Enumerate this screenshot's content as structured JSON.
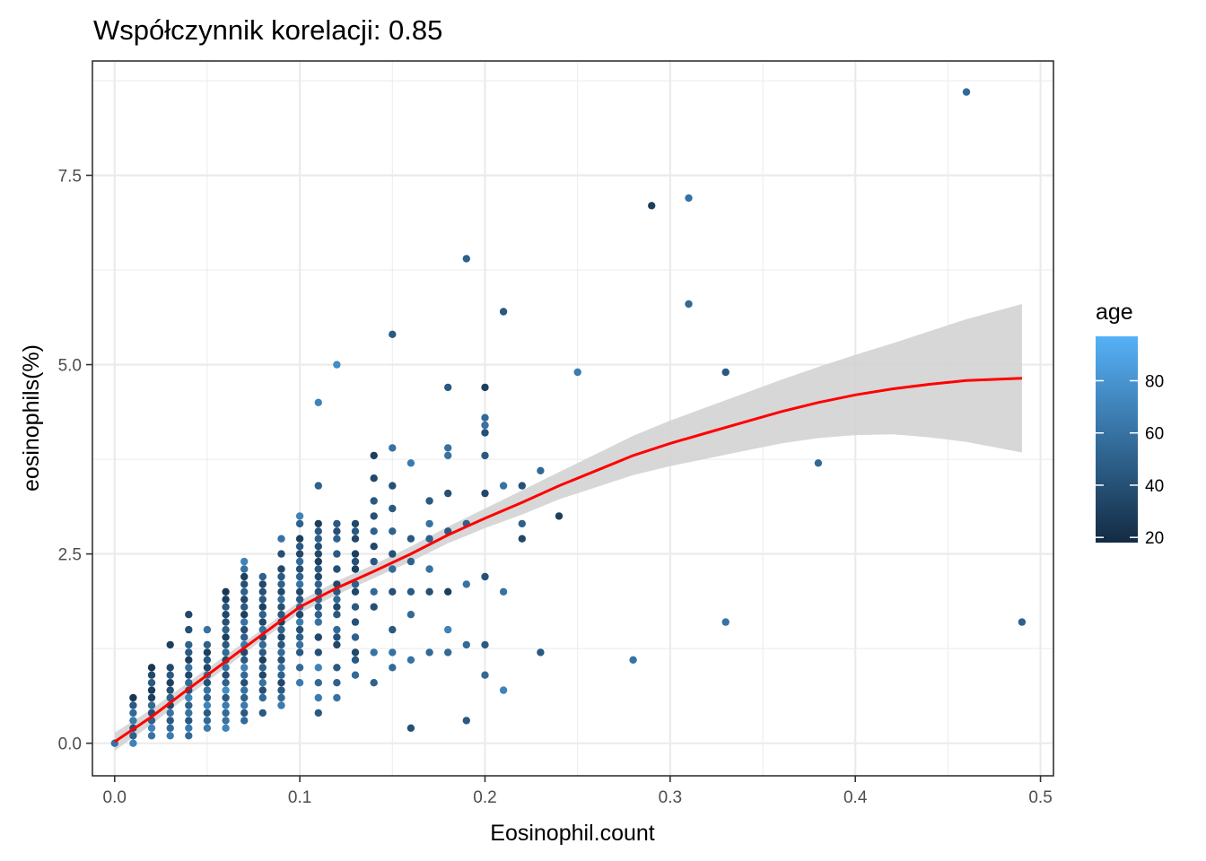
{
  "chart_data": {
    "type": "scatter",
    "title": "Współczynnik korelacji:  0.85",
    "xlabel": "Eosinophil.count",
    "ylabel": "eosinophils(%)",
    "xlim": [
      -0.012,
      0.507
    ],
    "ylim": [
      -0.43,
      9.01
    ],
    "x_ticks": [
      0.0,
      0.1,
      0.2,
      0.3,
      0.4,
      0.5
    ],
    "x_tick_labels": [
      "0.0",
      "0.1",
      "0.2",
      "0.3",
      "0.4",
      "0.5"
    ],
    "y_ticks": [
      0.0,
      2.5,
      5.0,
      7.5
    ],
    "y_tick_labels": [
      "0.0",
      "2.5",
      "5.0",
      "7.5"
    ],
    "grid": true,
    "legend": {
      "title": "age",
      "type": "colorbar",
      "position": "right",
      "range": [
        18,
        97
      ],
      "ticks": [
        20,
        40,
        60,
        80
      ],
      "tick_labels": [
        "20",
        "40",
        "60",
        "80"
      ],
      "low_color": "#132B43",
      "high_color": "#56B1F7"
    },
    "points": [
      [
        0.0,
        0.0,
        60
      ],
      [
        0.01,
        0.0,
        70
      ],
      [
        0.01,
        0.1,
        50
      ],
      [
        0.01,
        0.2,
        40
      ],
      [
        0.01,
        0.3,
        65
      ],
      [
        0.01,
        0.4,
        55
      ],
      [
        0.01,
        0.5,
        45
      ],
      [
        0.01,
        0.6,
        25
      ],
      [
        0.02,
        0.1,
        60
      ],
      [
        0.02,
        0.2,
        70
      ],
      [
        0.02,
        0.3,
        50
      ],
      [
        0.02,
        0.4,
        40
      ],
      [
        0.02,
        0.5,
        55
      ],
      [
        0.02,
        0.6,
        30
      ],
      [
        0.02,
        0.7,
        28
      ],
      [
        0.02,
        0.8,
        45
      ],
      [
        0.02,
        0.9,
        35
      ],
      [
        0.02,
        1.0,
        25
      ],
      [
        0.03,
        0.1,
        65
      ],
      [
        0.03,
        0.2,
        55
      ],
      [
        0.03,
        0.3,
        45
      ],
      [
        0.03,
        0.4,
        60
      ],
      [
        0.03,
        0.5,
        35
      ],
      [
        0.03,
        0.6,
        50
      ],
      [
        0.03,
        0.7,
        40
      ],
      [
        0.03,
        0.8,
        30
      ],
      [
        0.03,
        0.9,
        45
      ],
      [
        0.03,
        1.0,
        35
      ],
      [
        0.03,
        1.3,
        30
      ],
      [
        0.04,
        0.1,
        55
      ],
      [
        0.04,
        0.2,
        65
      ],
      [
        0.04,
        0.3,
        45
      ],
      [
        0.04,
        0.4,
        60
      ],
      [
        0.04,
        0.5,
        50
      ],
      [
        0.04,
        0.6,
        70
      ],
      [
        0.04,
        0.7,
        40
      ],
      [
        0.04,
        0.8,
        55
      ],
      [
        0.04,
        0.9,
        35
      ],
      [
        0.04,
        1.0,
        60
      ],
      [
        0.04,
        1.1,
        30
      ],
      [
        0.04,
        1.2,
        45
      ],
      [
        0.04,
        1.3,
        50
      ],
      [
        0.04,
        1.5,
        40
      ],
      [
        0.04,
        1.7,
        35
      ],
      [
        0.05,
        0.2,
        65
      ],
      [
        0.05,
        0.3,
        55
      ],
      [
        0.05,
        0.4,
        45
      ],
      [
        0.05,
        0.5,
        70
      ],
      [
        0.05,
        0.6,
        50
      ],
      [
        0.05,
        0.7,
        60
      ],
      [
        0.05,
        0.8,
        40
      ],
      [
        0.05,
        0.9,
        55
      ],
      [
        0.05,
        1.0,
        35
      ],
      [
        0.05,
        1.1,
        45
      ],
      [
        0.05,
        1.2,
        30
      ],
      [
        0.05,
        1.3,
        50
      ],
      [
        0.05,
        1.5,
        60
      ],
      [
        0.06,
        0.2,
        70
      ],
      [
        0.06,
        0.3,
        60
      ],
      [
        0.06,
        0.4,
        55
      ],
      [
        0.06,
        0.5,
        65
      ],
      [
        0.06,
        0.6,
        45
      ],
      [
        0.06,
        0.7,
        75
      ],
      [
        0.06,
        0.8,
        50
      ],
      [
        0.06,
        0.9,
        40
      ],
      [
        0.06,
        1.0,
        60
      ],
      [
        0.06,
        1.1,
        35
      ],
      [
        0.06,
        1.2,
        55
      ],
      [
        0.06,
        1.3,
        45
      ],
      [
        0.06,
        1.4,
        30
      ],
      [
        0.06,
        1.5,
        50
      ],
      [
        0.06,
        1.6,
        40
      ],
      [
        0.06,
        1.7,
        35
      ],
      [
        0.06,
        1.8,
        45
      ],
      [
        0.06,
        1.9,
        30
      ],
      [
        0.06,
        2.0,
        25
      ],
      [
        0.07,
        0.3,
        55
      ],
      [
        0.07,
        0.4,
        45
      ],
      [
        0.07,
        0.5,
        65
      ],
      [
        0.07,
        0.6,
        50
      ],
      [
        0.07,
        0.7,
        60
      ],
      [
        0.07,
        0.8,
        40
      ],
      [
        0.07,
        0.9,
        55
      ],
      [
        0.07,
        1.0,
        70
      ],
      [
        0.07,
        1.1,
        45
      ],
      [
        0.07,
        1.2,
        35
      ],
      [
        0.07,
        1.3,
        65
      ],
      [
        0.07,
        1.4,
        50
      ],
      [
        0.07,
        1.5,
        40
      ],
      [
        0.07,
        1.6,
        60
      ],
      [
        0.07,
        1.7,
        30
      ],
      [
        0.07,
        1.8,
        45
      ],
      [
        0.07,
        1.9,
        35
      ],
      [
        0.07,
        2.0,
        50
      ],
      [
        0.07,
        2.1,
        40
      ],
      [
        0.07,
        2.2,
        30
      ],
      [
        0.07,
        2.3,
        60
      ],
      [
        0.07,
        2.4,
        70
      ],
      [
        0.08,
        0.4,
        45
      ],
      [
        0.08,
        0.6,
        55
      ],
      [
        0.08,
        0.7,
        40
      ],
      [
        0.08,
        0.8,
        60
      ],
      [
        0.08,
        0.9,
        35
      ],
      [
        0.08,
        1.0,
        50
      ],
      [
        0.08,
        1.1,
        30
      ],
      [
        0.08,
        1.2,
        45
      ],
      [
        0.08,
        1.3,
        55
      ],
      [
        0.08,
        1.4,
        40
      ],
      [
        0.08,
        1.5,
        60
      ],
      [
        0.08,
        1.6,
        35
      ],
      [
        0.08,
        1.7,
        50
      ],
      [
        0.08,
        1.8,
        30
      ],
      [
        0.08,
        1.9,
        45
      ],
      [
        0.08,
        2.0,
        40
      ],
      [
        0.08,
        2.1,
        35
      ],
      [
        0.08,
        2.2,
        50
      ],
      [
        0.09,
        0.5,
        65
      ],
      [
        0.09,
        0.6,
        55
      ],
      [
        0.09,
        0.7,
        45
      ],
      [
        0.09,
        0.8,
        35
      ],
      [
        0.09,
        0.9,
        50
      ],
      [
        0.09,
        1.0,
        60
      ],
      [
        0.09,
        1.1,
        40
      ],
      [
        0.09,
        1.2,
        55
      ],
      [
        0.09,
        1.3,
        45
      ],
      [
        0.09,
        1.4,
        35
      ],
      [
        0.09,
        1.5,
        50
      ],
      [
        0.09,
        1.6,
        30
      ],
      [
        0.09,
        1.7,
        45
      ],
      [
        0.09,
        1.8,
        40
      ],
      [
        0.09,
        1.9,
        55
      ],
      [
        0.09,
        2.0,
        35
      ],
      [
        0.09,
        2.1,
        50
      ],
      [
        0.09,
        2.2,
        45
      ],
      [
        0.09,
        2.3,
        35
      ],
      [
        0.09,
        2.5,
        40
      ],
      [
        0.09,
        2.7,
        60
      ],
      [
        0.1,
        0.8,
        65
      ],
      [
        0.1,
        1.0,
        55
      ],
      [
        0.1,
        1.2,
        45
      ],
      [
        0.1,
        1.3,
        60
      ],
      [
        0.1,
        1.4,
        50
      ],
      [
        0.1,
        1.5,
        40
      ],
      [
        0.1,
        1.6,
        65
      ],
      [
        0.1,
        1.7,
        35
      ],
      [
        0.1,
        1.8,
        55
      ],
      [
        0.1,
        1.9,
        45
      ],
      [
        0.1,
        2.0,
        35
      ],
      [
        0.1,
        2.1,
        60
      ],
      [
        0.1,
        2.2,
        50
      ],
      [
        0.1,
        2.3,
        40
      ],
      [
        0.1,
        2.4,
        55
      ],
      [
        0.1,
        2.5,
        35
      ],
      [
        0.1,
        2.6,
        45
      ],
      [
        0.1,
        2.7,
        30
      ],
      [
        0.1,
        2.9,
        50
      ],
      [
        0.1,
        3.0,
        70
      ],
      [
        0.11,
        0.4,
        45
      ],
      [
        0.11,
        0.6,
        65
      ],
      [
        0.11,
        0.8,
        55
      ],
      [
        0.11,
        1.0,
        70
      ],
      [
        0.11,
        1.2,
        40
      ],
      [
        0.11,
        1.4,
        35
      ],
      [
        0.11,
        1.6,
        60
      ],
      [
        0.11,
        1.7,
        50
      ],
      [
        0.11,
        1.8,
        45
      ],
      [
        0.11,
        1.9,
        55
      ],
      [
        0.11,
        2.0,
        40
      ],
      [
        0.11,
        2.1,
        50
      ],
      [
        0.11,
        2.2,
        35
      ],
      [
        0.11,
        2.3,
        45
      ],
      [
        0.11,
        2.4,
        30
      ],
      [
        0.11,
        2.5,
        35
      ],
      [
        0.11,
        2.6,
        40
      ],
      [
        0.11,
        2.7,
        50
      ],
      [
        0.11,
        2.8,
        45
      ],
      [
        0.11,
        2.9,
        30
      ],
      [
        0.11,
        3.4,
        50
      ],
      [
        0.11,
        4.5,
        70
      ],
      [
        0.12,
        0.6,
        60
      ],
      [
        0.12,
        0.8,
        50
      ],
      [
        0.12,
        1.0,
        45
      ],
      [
        0.12,
        1.3,
        35
      ],
      [
        0.12,
        1.4,
        40
      ],
      [
        0.12,
        1.5,
        55
      ],
      [
        0.12,
        1.7,
        45
      ],
      [
        0.12,
        1.8,
        35
      ],
      [
        0.12,
        1.9,
        55
      ],
      [
        0.12,
        2.0,
        45
      ],
      [
        0.12,
        2.1,
        35
      ],
      [
        0.12,
        2.3,
        40
      ],
      [
        0.12,
        2.5,
        45
      ],
      [
        0.12,
        2.7,
        50
      ],
      [
        0.12,
        2.8,
        40
      ],
      [
        0.12,
        2.9,
        45
      ],
      [
        0.12,
        5.0,
        75
      ],
      [
        0.13,
        0.9,
        55
      ],
      [
        0.13,
        1.1,
        45
      ],
      [
        0.13,
        1.2,
        35
      ],
      [
        0.13,
        1.4,
        50
      ],
      [
        0.13,
        1.6,
        40
      ],
      [
        0.13,
        1.8,
        45
      ],
      [
        0.13,
        2.0,
        35
      ],
      [
        0.13,
        2.1,
        50
      ],
      [
        0.13,
        2.3,
        30
      ],
      [
        0.13,
        2.4,
        40
      ],
      [
        0.13,
        2.5,
        30
      ],
      [
        0.13,
        2.7,
        35
      ],
      [
        0.13,
        2.8,
        45
      ],
      [
        0.13,
        2.9,
        35
      ],
      [
        0.14,
        0.8,
        50
      ],
      [
        0.14,
        1.2,
        60
      ],
      [
        0.14,
        1.8,
        40
      ],
      [
        0.14,
        2.0,
        55
      ],
      [
        0.14,
        2.4,
        45
      ],
      [
        0.14,
        2.6,
        35
      ],
      [
        0.14,
        2.8,
        50
      ],
      [
        0.14,
        3.0,
        40
      ],
      [
        0.14,
        3.2,
        45
      ],
      [
        0.14,
        3.5,
        35
      ],
      [
        0.14,
        3.8,
        30
      ],
      [
        0.15,
        1.0,
        55
      ],
      [
        0.15,
        1.2,
        60
      ],
      [
        0.15,
        1.5,
        45
      ],
      [
        0.15,
        2.0,
        40
      ],
      [
        0.15,
        2.3,
        55
      ],
      [
        0.15,
        2.5,
        40
      ],
      [
        0.15,
        2.8,
        50
      ],
      [
        0.15,
        3.1,
        45
      ],
      [
        0.15,
        3.4,
        40
      ],
      [
        0.15,
        3.9,
        60
      ],
      [
        0.15,
        5.4,
        45
      ],
      [
        0.16,
        0.2,
        40
      ],
      [
        0.16,
        1.1,
        60
      ],
      [
        0.16,
        1.7,
        55
      ],
      [
        0.16,
        2.0,
        45
      ],
      [
        0.16,
        2.4,
        50
      ],
      [
        0.16,
        2.7,
        45
      ],
      [
        0.16,
        3.7,
        65
      ],
      [
        0.17,
        1.2,
        55
      ],
      [
        0.17,
        2.0,
        40
      ],
      [
        0.17,
        2.3,
        60
      ],
      [
        0.17,
        2.7,
        50
      ],
      [
        0.17,
        2.9,
        60
      ],
      [
        0.17,
        3.2,
        45
      ],
      [
        0.18,
        1.2,
        55
      ],
      [
        0.18,
        1.5,
        70
      ],
      [
        0.18,
        2.0,
        30
      ],
      [
        0.18,
        2.8,
        45
      ],
      [
        0.18,
        3.3,
        40
      ],
      [
        0.18,
        3.8,
        60
      ],
      [
        0.18,
        3.9,
        60
      ],
      [
        0.18,
        4.7,
        45
      ],
      [
        0.19,
        0.3,
        45
      ],
      [
        0.19,
        1.3,
        55
      ],
      [
        0.19,
        2.1,
        60
      ],
      [
        0.19,
        2.9,
        50
      ],
      [
        0.19,
        6.4,
        50
      ],
      [
        0.2,
        0.9,
        55
      ],
      [
        0.2,
        1.3,
        45
      ],
      [
        0.2,
        2.2,
        40
      ],
      [
        0.2,
        3.3,
        35
      ],
      [
        0.2,
        3.8,
        45
      ],
      [
        0.2,
        4.1,
        40
      ],
      [
        0.2,
        4.2,
        60
      ],
      [
        0.2,
        4.3,
        55
      ],
      [
        0.2,
        4.7,
        30
      ],
      [
        0.21,
        0.7,
        70
      ],
      [
        0.21,
        2.0,
        60
      ],
      [
        0.21,
        3.4,
        60
      ],
      [
        0.21,
        5.7,
        45
      ],
      [
        0.22,
        2.7,
        35
      ],
      [
        0.22,
        2.9,
        50
      ],
      [
        0.22,
        3.4,
        40
      ],
      [
        0.23,
        1.2,
        45
      ],
      [
        0.23,
        3.6,
        55
      ],
      [
        0.24,
        3.0,
        30
      ],
      [
        0.25,
        4.9,
        65
      ],
      [
        0.28,
        1.1,
        60
      ],
      [
        0.29,
        7.1,
        30
      ],
      [
        0.31,
        5.8,
        55
      ],
      [
        0.31,
        7.2,
        60
      ],
      [
        0.33,
        1.6,
        60
      ],
      [
        0.33,
        4.9,
        45
      ],
      [
        0.38,
        3.7,
        55
      ],
      [
        0.46,
        8.6,
        55
      ],
      [
        0.49,
        1.6,
        50
      ]
    ],
    "smooth_line": [
      [
        0.0,
        0.02
      ],
      [
        0.02,
        0.35
      ],
      [
        0.04,
        0.72
      ],
      [
        0.06,
        1.08
      ],
      [
        0.08,
        1.44
      ],
      [
        0.1,
        1.8
      ],
      [
        0.12,
        2.05
      ],
      [
        0.14,
        2.27
      ],
      [
        0.16,
        2.5
      ],
      [
        0.18,
        2.75
      ],
      [
        0.2,
        2.97
      ],
      [
        0.22,
        3.18
      ],
      [
        0.24,
        3.4
      ],
      [
        0.26,
        3.6
      ],
      [
        0.28,
        3.8
      ],
      [
        0.3,
        3.96
      ],
      [
        0.32,
        4.1
      ],
      [
        0.34,
        4.24
      ],
      [
        0.36,
        4.38
      ],
      [
        0.38,
        4.5
      ],
      [
        0.4,
        4.6
      ],
      [
        0.42,
        4.68
      ],
      [
        0.44,
        4.74
      ],
      [
        0.46,
        4.79
      ],
      [
        0.49,
        4.82
      ]
    ],
    "smooth_ci": [
      [
        0.0,
        -0.1,
        0.14
      ],
      [
        0.02,
        0.25,
        0.45
      ],
      [
        0.04,
        0.63,
        0.81
      ],
      [
        0.06,
        1.0,
        1.16
      ],
      [
        0.08,
        1.37,
        1.51
      ],
      [
        0.1,
        1.72,
        1.88
      ],
      [
        0.12,
        1.96,
        2.14
      ],
      [
        0.14,
        2.18,
        2.36
      ],
      [
        0.16,
        2.4,
        2.6
      ],
      [
        0.18,
        2.64,
        2.86
      ],
      [
        0.2,
        2.84,
        3.1
      ],
      [
        0.22,
        3.02,
        3.34
      ],
      [
        0.24,
        3.22,
        3.58
      ],
      [
        0.26,
        3.38,
        3.82
      ],
      [
        0.28,
        3.54,
        4.06
      ],
      [
        0.3,
        3.66,
        4.26
      ],
      [
        0.32,
        3.76,
        4.44
      ],
      [
        0.34,
        3.86,
        4.62
      ],
      [
        0.36,
        3.96,
        4.8
      ],
      [
        0.38,
        4.03,
        4.97
      ],
      [
        0.4,
        4.07,
        5.13
      ],
      [
        0.42,
        4.08,
        5.28
      ],
      [
        0.44,
        4.04,
        5.44
      ],
      [
        0.46,
        3.98,
        5.6
      ],
      [
        0.49,
        3.84,
        5.8
      ]
    ],
    "line_color": "#FF0000",
    "ci_color": "#d3d3d3"
  }
}
